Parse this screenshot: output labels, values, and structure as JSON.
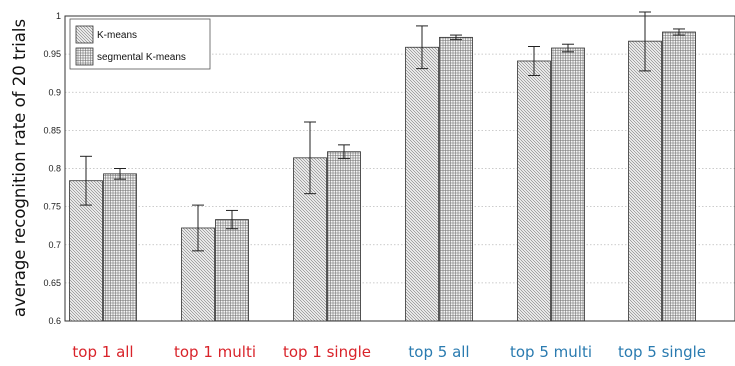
{
  "chart_data": {
    "type": "bar",
    "title": "",
    "xlabel": "",
    "ylabel": "average recognition rate of 20 trials",
    "ylim": [
      0.6,
      1.0
    ],
    "yticks": [
      0.6,
      0.65,
      0.7,
      0.75,
      0.8,
      0.85,
      0.9,
      0.95,
      1
    ],
    "ytick_labels": [
      "0.6",
      "0.65",
      "0.7",
      "0.75",
      "0.8",
      "0.85",
      "0.9",
      "0.95",
      "1"
    ],
    "grid": "horizontal dotted",
    "legend_position": "top-left",
    "categories": [
      "top 1 all",
      "top 1 multi",
      "top 1 single",
      "top 5 all",
      "top 5 multi",
      "top 5 single"
    ],
    "category_colors": [
      "#d9232a",
      "#d9232a",
      "#d9232a",
      "#2a7bb0",
      "#2a7bb0",
      "#2a7bb0"
    ],
    "series": [
      {
        "name": "K-means",
        "pattern": "diagonal-hatch",
        "values": [
          0.784,
          0.722,
          0.814,
          0.959,
          0.941,
          0.967
        ],
        "error": [
          0.032,
          0.03,
          0.047,
          0.028,
          0.019,
          0.039
        ]
      },
      {
        "name": "segmental K-means",
        "pattern": "crosshatch",
        "values": [
          0.793,
          0.733,
          0.822,
          0.972,
          0.958,
          0.979
        ],
        "error": [
          0.007,
          0.012,
          0.009,
          0.003,
          0.005,
          0.004
        ]
      }
    ]
  }
}
